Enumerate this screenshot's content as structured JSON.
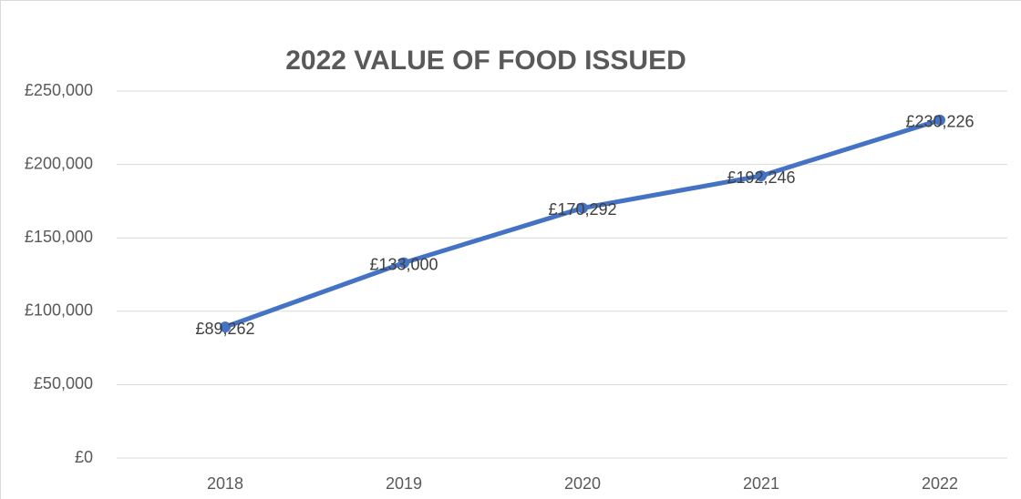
{
  "chart_data": {
    "type": "line",
    "title": "2022 VALUE OF FOOD ISSUED",
    "categories": [
      "2018",
      "2019",
      "2020",
      "2021",
      "2022"
    ],
    "series": [
      {
        "name": "Value of food issued",
        "color": "#4472c4",
        "values": [
          89262,
          133000,
          170292,
          192246,
          230226
        ],
        "value_labels": [
          "£89,262",
          "£133,000",
          "£170,292",
          "£192,246",
          "£230,226"
        ]
      }
    ],
    "ylim": [
      0,
      250000
    ],
    "yticks": [
      {
        "value": 0,
        "label": "£0"
      },
      {
        "value": 50000,
        "label": "£50,000"
      },
      {
        "value": 100000,
        "label": "£100,000"
      },
      {
        "value": 150000,
        "label": "£150,000"
      },
      {
        "value": 200000,
        "label": "£200,000"
      },
      {
        "value": 250000,
        "label": "£250,000"
      }
    ],
    "grid": true
  }
}
